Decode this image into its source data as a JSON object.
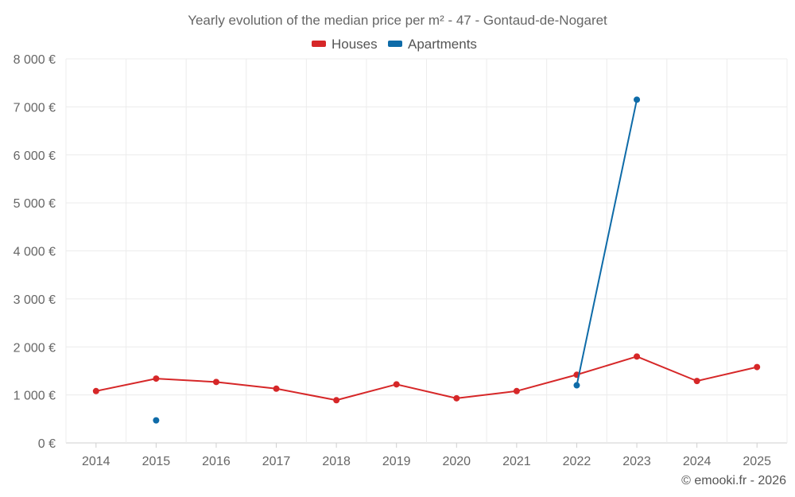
{
  "chart_data": {
    "type": "line",
    "title": "Yearly evolution of the median price per m² - 47 - Gontaud-de-Nogaret",
    "xlabel": "",
    "ylabel": "",
    "categories": [
      "2014",
      "2015",
      "2016",
      "2017",
      "2018",
      "2019",
      "2020",
      "2021",
      "2022",
      "2023",
      "2024",
      "2025"
    ],
    "ylim": [
      0,
      8000
    ],
    "yticks": [
      0,
      1000,
      2000,
      3000,
      4000,
      5000,
      6000,
      7000,
      8000
    ],
    "ytick_labels": [
      "0 €",
      "1 000 €",
      "2 000 €",
      "3 000 €",
      "4 000 €",
      "5 000 €",
      "6 000 €",
      "7 000 €",
      "8 000 €"
    ],
    "grid": true,
    "legend_position": "top-center",
    "series": [
      {
        "name": "Houses",
        "color": "#d62728",
        "values": [
          1080,
          1340,
          1270,
          1130,
          890,
          1220,
          930,
          1080,
          1420,
          1800,
          1290,
          1580
        ]
      },
      {
        "name": "Apartments",
        "color": "#0e6ba8",
        "values": [
          null,
          470,
          null,
          null,
          null,
          null,
          null,
          null,
          1200,
          7150,
          null,
          null
        ]
      }
    ],
    "credit": "© emooki.fr - 2026"
  }
}
